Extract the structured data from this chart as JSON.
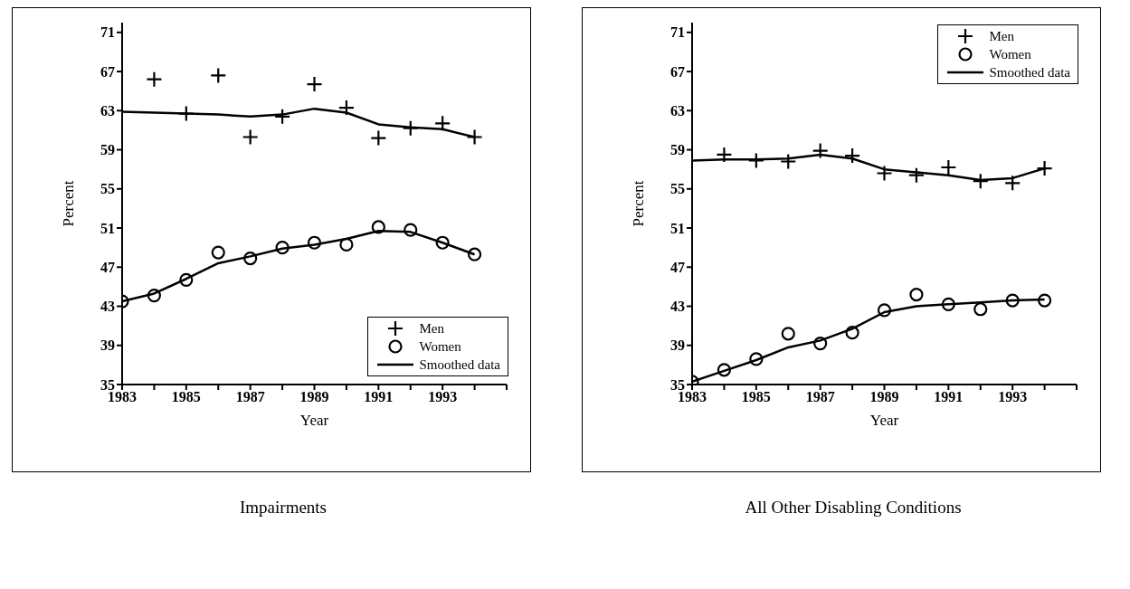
{
  "chart_data": [
    {
      "type": "scatter",
      "title": "Impairments",
      "xlabel": "Year",
      "ylabel": "Percent",
      "xlim": [
        1983,
        1995
      ],
      "ylim": [
        35,
        72
      ],
      "xticks": [
        1983,
        {
          "value": 1984,
          "label": null
        },
        1985,
        {
          "value": 1986,
          "label": null
        },
        1987,
        {
          "value": 1988,
          "label": null
        },
        1989,
        {
          "value": 1990,
          "label": null
        },
        1991,
        {
          "value": 1992,
          "label": null
        },
        1993,
        {
          "value": 1994,
          "label": null
        },
        {
          "value": 1995,
          "label": null
        }
      ],
      "yticks": [
        35,
        39,
        43,
        47,
        51,
        55,
        59,
        63,
        67,
        71
      ],
      "grid": false,
      "legend": "bottom right",
      "x": [
        1983,
        1984,
        1985,
        1986,
        1987,
        1988,
        1989,
        1990,
        1991,
        1992,
        1993,
        1994
      ],
      "series": [
        {
          "name": "Men",
          "marker": "cross",
          "color": "#000000",
          "values": [
            null,
            66.2,
            62.7,
            66.6,
            60.3,
            62.4,
            65.7,
            63.3,
            60.2,
            61.2,
            61.7,
            60.3
          ]
        },
        {
          "name": "Women",
          "marker": "circle",
          "color": "#000000",
          "values": [
            43.5,
            44.1,
            45.7,
            48.5,
            47.9,
            49.0,
            49.5,
            49.3,
            51.1,
            50.8,
            49.5,
            48.3
          ]
        },
        {
          "name": "Smoothed data",
          "type": "line",
          "marker": "none",
          "color": "#000000",
          "values": [
            62.9,
            62.8,
            62.7,
            62.6,
            62.4,
            62.6,
            63.2,
            62.8,
            61.6,
            61.3,
            61.1,
            60.3
          ]
        },
        {
          "type": "line",
          "marker": "none",
          "color": "#000000",
          "values": [
            43.5,
            44.3,
            45.8,
            47.4,
            48.1,
            48.9,
            49.3,
            49.9,
            50.7,
            50.6,
            49.5,
            48.3
          ]
        }
      ]
    },
    {
      "type": "scatter",
      "title": "All Other Disabling Conditions",
      "xlabel": "Year",
      "ylabel": "Percent",
      "xlim": [
        1983,
        1995
      ],
      "ylim": [
        35,
        72
      ],
      "xticks": [
        1983,
        {
          "value": 1984,
          "label": null
        },
        1985,
        {
          "value": 1986,
          "label": null
        },
        1987,
        {
          "value": 1988,
          "label": null
        },
        1989,
        {
          "value": 1990,
          "label": null
        },
        1991,
        {
          "value": 1992,
          "label": null
        },
        1993,
        {
          "value": 1994,
          "label": null
        },
        {
          "value": 1995,
          "label": null
        }
      ],
      "yticks": [
        35,
        39,
        43,
        47,
        51,
        55,
        59,
        63,
        67,
        71
      ],
      "grid": false,
      "legend": "top right",
      "x": [
        1983,
        1984,
        1985,
        1986,
        1987,
        1988,
        1989,
        1990,
        1991,
        1992,
        1993,
        1994
      ],
      "series": [
        {
          "name": "Men",
          "marker": "cross",
          "color": "#000000",
          "values": [
            null,
            58.5,
            57.9,
            57.8,
            58.9,
            58.4,
            56.6,
            56.4,
            57.2,
            55.8,
            55.6,
            57.1
          ]
        },
        {
          "name": "Women",
          "marker": "circle",
          "color": "#000000",
          "values": [
            35.3,
            36.5,
            37.6,
            40.2,
            39.2,
            40.3,
            42.6,
            44.2,
            43.2,
            42.7,
            43.6,
            43.6
          ]
        },
        {
          "name": "Smoothed data",
          "type": "line",
          "marker": "none",
          "color": "#000000",
          "values": [
            57.9,
            58.0,
            58.0,
            58.1,
            58.5,
            58.1,
            57.0,
            56.7,
            56.4,
            55.9,
            56.1,
            57.1
          ]
        },
        {
          "type": "line",
          "marker": "none",
          "color": "#000000",
          "values": [
            35.3,
            36.4,
            37.5,
            38.8,
            39.5,
            40.7,
            42.4,
            43.0,
            43.2,
            43.4,
            43.6,
            43.7
          ]
        }
      ]
    }
  ]
}
